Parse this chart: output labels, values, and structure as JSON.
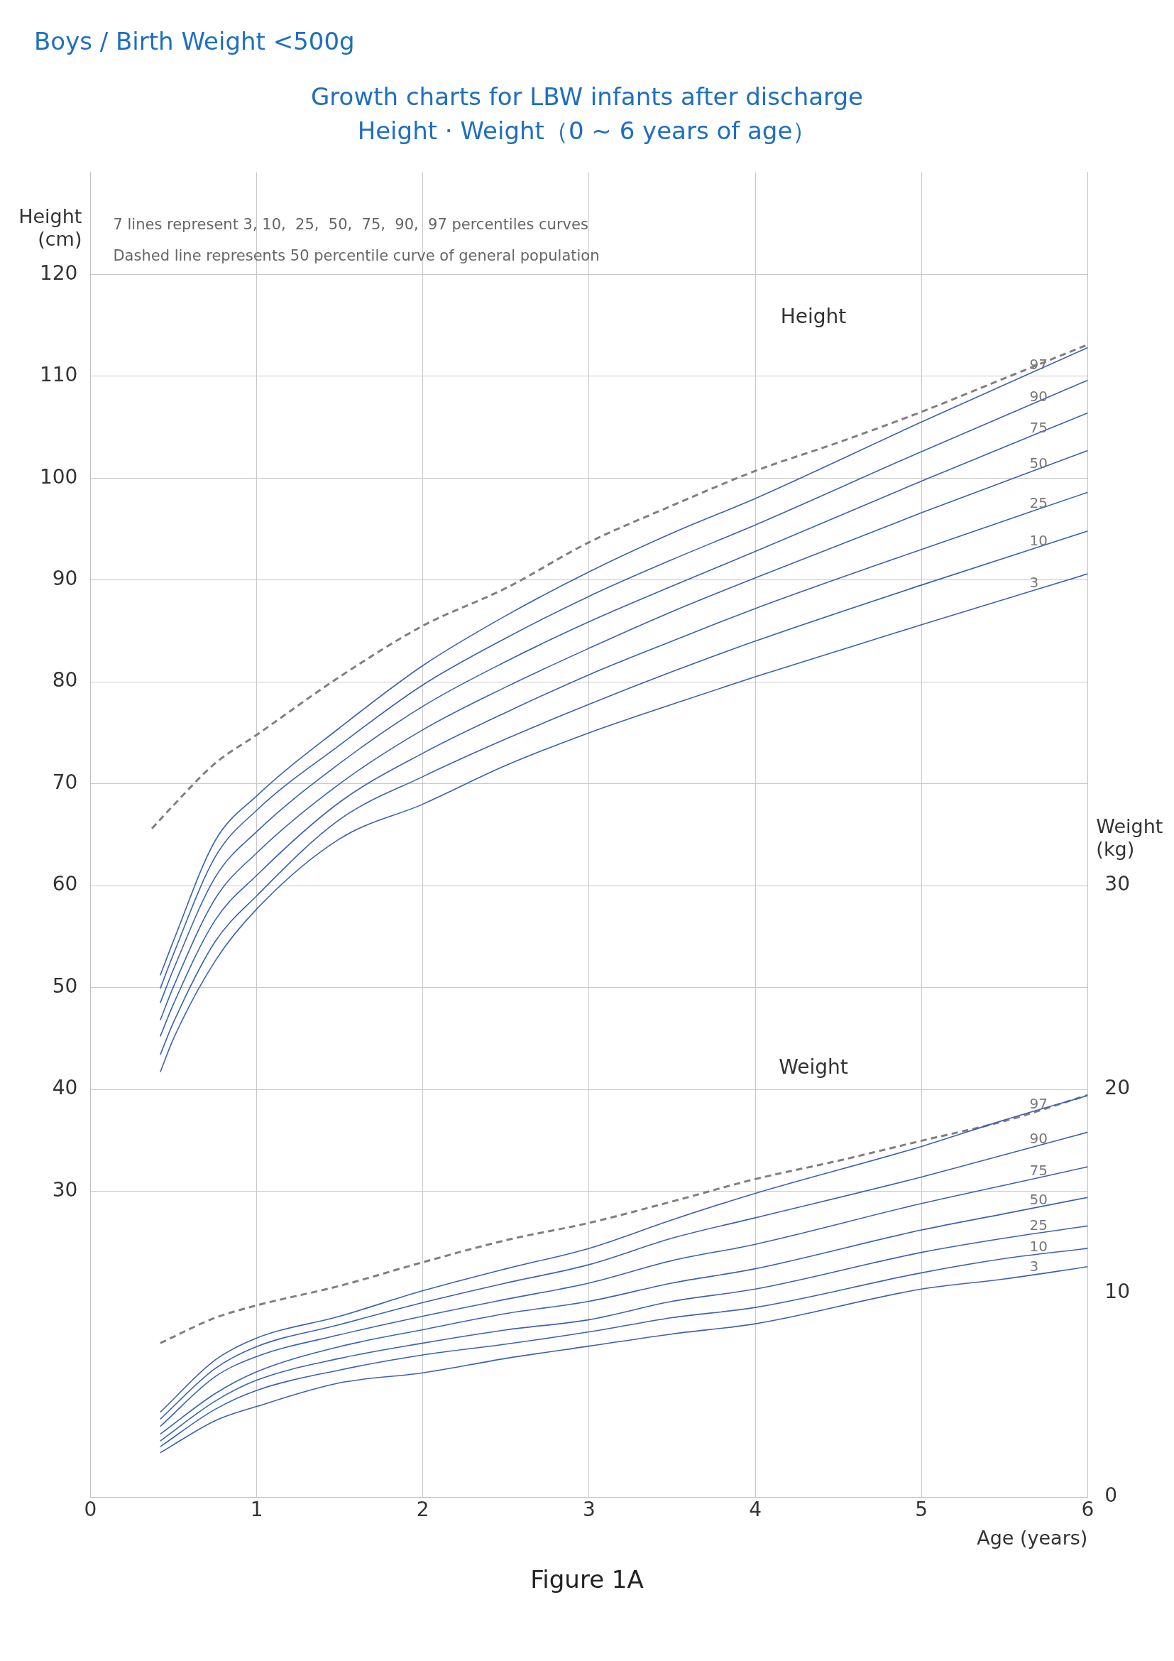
{
  "chart_data": {
    "type": "line",
    "subtitle": "Boys / Birth Weight <500g",
    "title": "Growth charts for LBW infants after discharge\nHeight · Weight（0 ~ 6 years of age）",
    "xlabel": "Age (years)",
    "ylabel": "Height\n(cm)",
    "y2label": "Weight\n(kg)",
    "xlim": [
      0,
      6
    ],
    "xticks": [
      0,
      1,
      2,
      3,
      4,
      5,
      6
    ],
    "ylim": [
      0,
      130
    ],
    "yticks": [
      30,
      40,
      50,
      60,
      70,
      80,
      90,
      100,
      110,
      120
    ],
    "y2lim": [
      0,
      65
    ],
    "y2ticks": [
      0,
      10,
      20,
      30
    ],
    "grid": true,
    "legend": false,
    "marker": "none",
    "annotations": [
      "7 lines represent 3, 10,  25,  50,  75,  90,  97 percentiles curves",
      "Dashed line represents 50 percentile curve of general population",
      "Height",
      "Weight",
      "Figure 1A"
    ],
    "series": [
      {
        "name": "97",
        "color": "#3a62b4",
        "x": [
          0.42,
          0.5,
          0.75,
          1,
          1.5,
          2,
          2.5,
          3,
          3.5,
          4,
          5,
          6
        ],
        "values": [
          51.2,
          54.6,
          64.4,
          68.8,
          75.5,
          81.6,
          86.5,
          90.8,
          94.6,
          98.0,
          105.5,
          112.8
        ]
      },
      {
        "name": "90",
        "color": "#3a62b4",
        "x": [
          0.42,
          0.5,
          0.75,
          1,
          1.5,
          2,
          2.5,
          3,
          3.5,
          4,
          5,
          6
        ],
        "values": [
          49.9,
          53.3,
          62.8,
          67.4,
          73.8,
          79.7,
          84.3,
          88.4,
          92.0,
          95.4,
          102.6,
          109.6
        ]
      },
      {
        "name": "75",
        "color": "#3a62b4",
        "x": [
          0.42,
          0.5,
          0.75,
          1,
          1.5,
          2,
          2.5,
          3,
          3.5,
          4,
          5,
          6
        ],
        "values": [
          48.5,
          51.8,
          60.8,
          65.3,
          72.0,
          77.6,
          82.0,
          85.9,
          89.4,
          92.8,
          99.7,
          106.4
        ]
      },
      {
        "name": "50",
        "color": "#3a62b4",
        "x": [
          0.42,
          0.5,
          0.75,
          1,
          1.5,
          2,
          2.5,
          3,
          3.5,
          4,
          5,
          6
        ],
        "values": [
          46.8,
          50.1,
          58.7,
          63.2,
          70.0,
          75.3,
          79.5,
          83.3,
          86.9,
          90.2,
          96.6,
          102.7
        ]
      },
      {
        "name": "25",
        "color": "#3a62b4",
        "x": [
          0.42,
          0.5,
          0.75,
          1,
          1.5,
          2,
          2.5,
          3,
          3.5,
          4,
          5,
          6
        ],
        "values": [
          45.2,
          48.4,
          56.6,
          61.0,
          68.2,
          73.0,
          77.0,
          80.7,
          84.0,
          87.2,
          93.0,
          98.6
        ]
      },
      {
        "name": "10",
        "color": "#3a62b4",
        "x": [
          0.42,
          0.5,
          0.75,
          1,
          1.5,
          2,
          2.5,
          3,
          3.5,
          4,
          5,
          6
        ],
        "values": [
          43.4,
          46.6,
          54.5,
          59.0,
          66.5,
          70.7,
          74.4,
          77.8,
          81.0,
          84.0,
          89.5,
          94.8
        ]
      },
      {
        "name": "3",
        "color": "#3a62b4",
        "x": [
          0.42,
          0.5,
          0.75,
          1,
          1.5,
          2,
          2.5,
          3,
          3.5,
          4,
          5,
          6
        ],
        "values": [
          41.7,
          45.0,
          52.6,
          57.7,
          64.6,
          68.0,
          71.8,
          75.0,
          77.8,
          80.5,
          85.6,
          90.6
        ]
      },
      {
        "color": "#808080",
        "line_style": "dashed",
        "x": [
          0.37,
          0.5,
          0.75,
          1,
          1.5,
          2,
          2.5,
          3,
          3.5,
          4,
          4.5,
          5,
          5.5,
          6
        ],
        "values": [
          65.6,
          67.9,
          72.0,
          74.8,
          80.5,
          85.5,
          89.2,
          93.7,
          97.3,
          100.7,
          103.5,
          106.5,
          109.8,
          113.1
        ]
      },
      {
        "name": "97",
        "color": "#3a62b4",
        "axis": "y2",
        "x": [
          0.42,
          0.75,
          1,
          1.5,
          2,
          2.5,
          3,
          3.5,
          4,
          5,
          5.5,
          6
        ],
        "values": [
          4.16,
          6.72,
          7.8,
          8.87,
          10.12,
          11.2,
          12.2,
          13.6,
          14.9,
          17.2,
          18.5,
          19.7
        ]
      },
      {
        "name": "90",
        "color": "#3a62b4",
        "axis": "y2",
        "x": [
          0.42,
          0.75,
          1,
          1.5,
          2,
          2.5,
          3,
          3.5,
          4,
          5,
          5.5,
          6
        ],
        "values": [
          3.82,
          6.3,
          7.38,
          8.46,
          9.54,
          10.5,
          11.4,
          12.7,
          13.7,
          15.7,
          16.8,
          17.9
        ]
      },
      {
        "name": "75",
        "color": "#3a62b4",
        "axis": "y2",
        "x": [
          0.42,
          0.75,
          1,
          1.5,
          2,
          2.5,
          3,
          3.5,
          4,
          5,
          5.5,
          6
        ],
        "values": [
          3.46,
          5.9,
          6.89,
          7.96,
          8.87,
          9.7,
          10.5,
          11.6,
          12.4,
          14.4,
          15.3,
          16.2
        ]
      },
      {
        "name": "50",
        "color": "#3a62b4",
        "axis": "y2",
        "x": [
          0.42,
          0.75,
          1,
          1.5,
          2,
          2.5,
          3,
          3.5,
          4,
          5,
          5.5,
          6
        ],
        "values": [
          3.08,
          5.07,
          6.14,
          7.38,
          8.21,
          9.0,
          9.6,
          10.5,
          11.2,
          13.1,
          13.9,
          14.7
        ]
      },
      {
        "name": "25",
        "color": "#3a62b4",
        "axis": "y2",
        "x": [
          0.42,
          0.75,
          1,
          1.5,
          2,
          2.5,
          3,
          3.5,
          4,
          5,
          5.5,
          6
        ],
        "values": [
          2.75,
          4.7,
          5.73,
          6.8,
          7.55,
          8.2,
          8.7,
          9.6,
          10.2,
          12.0,
          12.7,
          13.3
        ]
      },
      {
        "name": "10",
        "color": "#3a62b4",
        "axis": "y2",
        "x": [
          0.42,
          0.75,
          1,
          1.5,
          2,
          2.5,
          3,
          3.5,
          4,
          5,
          5.5,
          6
        ],
        "values": [
          2.47,
          4.3,
          5.23,
          6.23,
          6.97,
          7.5,
          8.1,
          8.8,
          9.3,
          11.0,
          11.7,
          12.2
        ]
      },
      {
        "name": "3",
        "color": "#3a62b4",
        "axis": "y2",
        "x": [
          0.42,
          0.75,
          1,
          1.5,
          2,
          2.5,
          3,
          3.5,
          4,
          5,
          5.5,
          6
        ],
        "values": [
          2.17,
          3.74,
          4.44,
          5.6,
          6.09,
          6.8,
          7.4,
          8.0,
          8.5,
          10.2,
          10.7,
          11.3
        ]
      },
      {
        "color": "#808080",
        "line_style": "dashed",
        "axis": "y2",
        "x": [
          0.42,
          0.75,
          1,
          1.5,
          2,
          2.5,
          3,
          3.5,
          4,
          4.5,
          5,
          5.5,
          6
        ],
        "values": [
          7.55,
          8.79,
          9.4,
          10.36,
          11.52,
          12.6,
          13.45,
          14.5,
          15.6,
          16.5,
          17.48,
          18.45,
          19.72
        ]
      }
    ]
  }
}
